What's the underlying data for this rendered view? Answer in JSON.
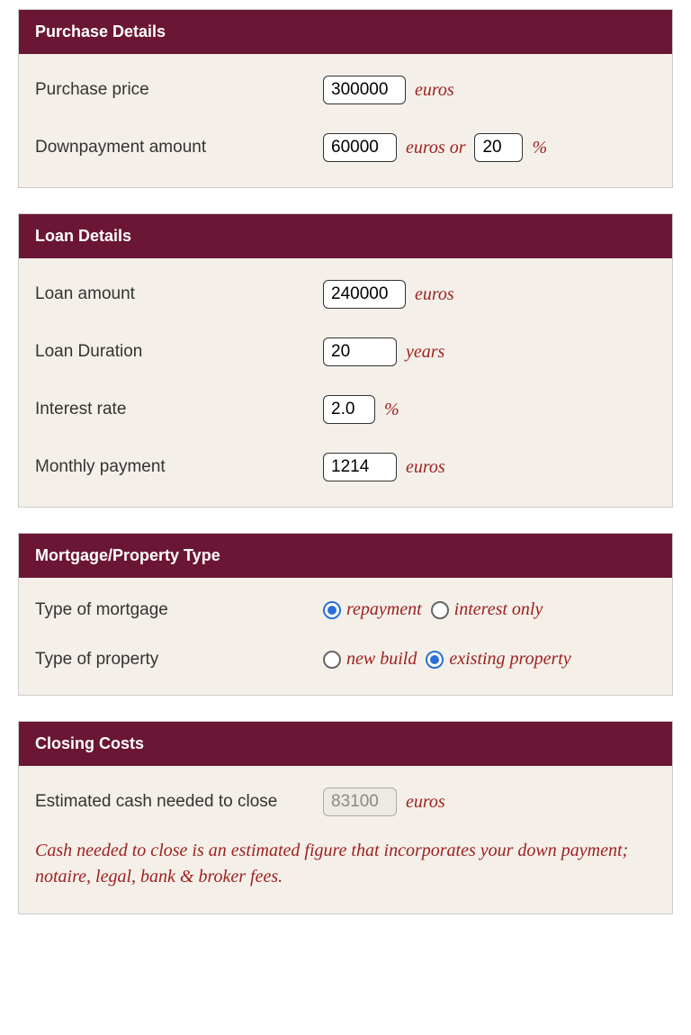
{
  "colors": {
    "header_bg": "#6b1635",
    "body_bg": "#f4f0e9",
    "accent_text": "#a02020",
    "radio_selected": "#2a6fd6",
    "border": "#cccccc"
  },
  "sections": {
    "purchase": {
      "title": "Purchase Details",
      "rows": {
        "price": {
          "label": "Purchase price",
          "value": "300000",
          "unit": "euros"
        },
        "downpayment": {
          "label": "Downpayment amount",
          "amount": "60000",
          "amount_unit": "euros or",
          "percent": "20",
          "percent_unit": "%"
        }
      }
    },
    "loan": {
      "title": "Loan Details",
      "rows": {
        "amount": {
          "label": "Loan amount",
          "value": "240000",
          "unit": "euros"
        },
        "duration": {
          "label": "Loan Duration",
          "value": "20",
          "unit": "years"
        },
        "rate": {
          "label": "Interest rate",
          "value": "2.0",
          "unit": "%"
        },
        "monthly": {
          "label": "Monthly payment",
          "value": "1214",
          "unit": "euros"
        }
      }
    },
    "type": {
      "title": "Mortgage/Property Type",
      "rows": {
        "mortgage": {
          "label": "Type of mortgage",
          "options": {
            "repayment": "repayment",
            "interest_only": "interest only"
          },
          "selected": "repayment"
        },
        "property": {
          "label": "Type of property",
          "options": {
            "new_build": "new build",
            "existing": "existing property"
          },
          "selected": "existing"
        }
      }
    },
    "closing": {
      "title": "Closing Costs",
      "rows": {
        "cash": {
          "label": "Estimated cash needed to close",
          "value": "83100",
          "unit": "euros"
        }
      },
      "note": "Cash needed to close is an estimated figure that incorporates your down payment; notaire, legal, bank & broker fees."
    }
  }
}
